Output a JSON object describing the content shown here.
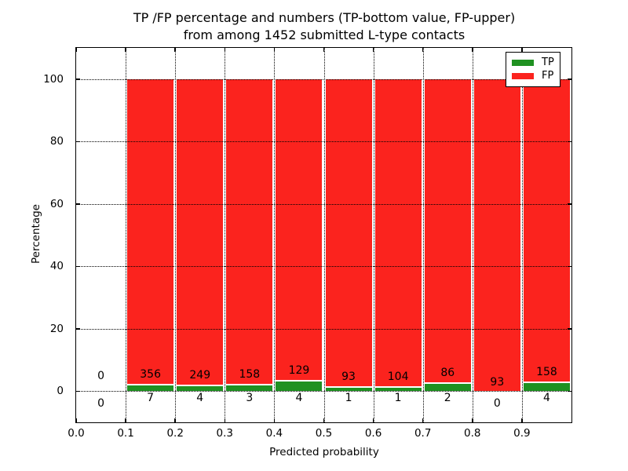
{
  "title": {
    "line1": "TP /FP percentage and numbers (TP-bottom value, FP-upper)",
    "line2": "from among 1452 submitted L-type contacts"
  },
  "chart_data": {
    "type": "bar",
    "subtype": "stacked-percentage",
    "title": "TP /FP percentage and numbers (TP-bottom value, FP-upper)\nfrom among 1452 submitted L-type contacts",
    "xlabel": "Predicted probability",
    "ylabel": "Percentage",
    "xlim": [
      0.0,
      1.0
    ],
    "ylim": [
      -10,
      110
    ],
    "x_ticks": [
      {
        "value": 0.0,
        "label": "0.0"
      },
      {
        "value": 0.1,
        "label": "0.1"
      },
      {
        "value": 0.2,
        "label": "0.2"
      },
      {
        "value": 0.3,
        "label": "0.3"
      },
      {
        "value": 0.4,
        "label": "0.4"
      },
      {
        "value": 0.5,
        "label": "0.5"
      },
      {
        "value": 0.6,
        "label": "0.6"
      },
      {
        "value": 0.7,
        "label": "0.7"
      },
      {
        "value": 0.8,
        "label": "0.8"
      },
      {
        "value": 0.9,
        "label": "0.9"
      }
    ],
    "y_ticks": [
      {
        "value": 0,
        "label": "0"
      },
      {
        "value": 20,
        "label": "20"
      },
      {
        "value": 40,
        "label": "40"
      },
      {
        "value": 60,
        "label": "60"
      },
      {
        "value": 80,
        "label": "80"
      },
      {
        "value": 100,
        "label": "100"
      }
    ],
    "grid": {
      "style": "dotted",
      "color": "#000000",
      "drawn_above_bars": true
    },
    "colors": {
      "tp": "#1f9121",
      "fp": "#fb231e"
    },
    "legend": {
      "position": "upper-right",
      "entries": [
        {
          "label": "TP",
          "color": "#1f9121"
        },
        {
          "label": "FP",
          "color": "#fb231e"
        }
      ]
    },
    "bins": [
      {
        "range": [
          0.0,
          0.1
        ],
        "tp_count": 0,
        "fp_count": 0,
        "tp_pct": 0.0,
        "fp_pct": 0.0,
        "labels_only": true
      },
      {
        "range": [
          0.1,
          0.2
        ],
        "tp_count": 7,
        "fp_count": 356,
        "tp_pct": 1.93,
        "fp_pct": 98.07,
        "labels_only": false
      },
      {
        "range": [
          0.2,
          0.3
        ],
        "tp_count": 4,
        "fp_count": 249,
        "tp_pct": 1.58,
        "fp_pct": 98.42,
        "labels_only": false
      },
      {
        "range": [
          0.3,
          0.4
        ],
        "tp_count": 3,
        "fp_count": 158,
        "tp_pct": 1.86,
        "fp_pct": 98.14,
        "labels_only": false
      },
      {
        "range": [
          0.4,
          0.5
        ],
        "tp_count": 4,
        "fp_count": 129,
        "tp_pct": 3.01,
        "fp_pct": 96.99,
        "labels_only": false
      },
      {
        "range": [
          0.5,
          0.6
        ],
        "tp_count": 1,
        "fp_count": 93,
        "tp_pct": 1.06,
        "fp_pct": 98.94,
        "labels_only": false
      },
      {
        "range": [
          0.6,
          0.7
        ],
        "tp_count": 1,
        "fp_count": 104,
        "tp_pct": 0.95,
        "fp_pct": 99.05,
        "labels_only": false
      },
      {
        "range": [
          0.7,
          0.8
        ],
        "tp_count": 2,
        "fp_count": 86,
        "tp_pct": 2.27,
        "fp_pct": 97.73,
        "labels_only": false
      },
      {
        "range": [
          0.8,
          0.9
        ],
        "tp_count": 0,
        "fp_count": 93,
        "tp_pct": 0.0,
        "fp_pct": 100.0,
        "labels_only": false
      },
      {
        "range": [
          0.9,
          1.0
        ],
        "tp_count": 4,
        "fp_count": 158,
        "tp_pct": 2.47,
        "fp_pct": 97.53,
        "labels_only": false
      }
    ]
  }
}
